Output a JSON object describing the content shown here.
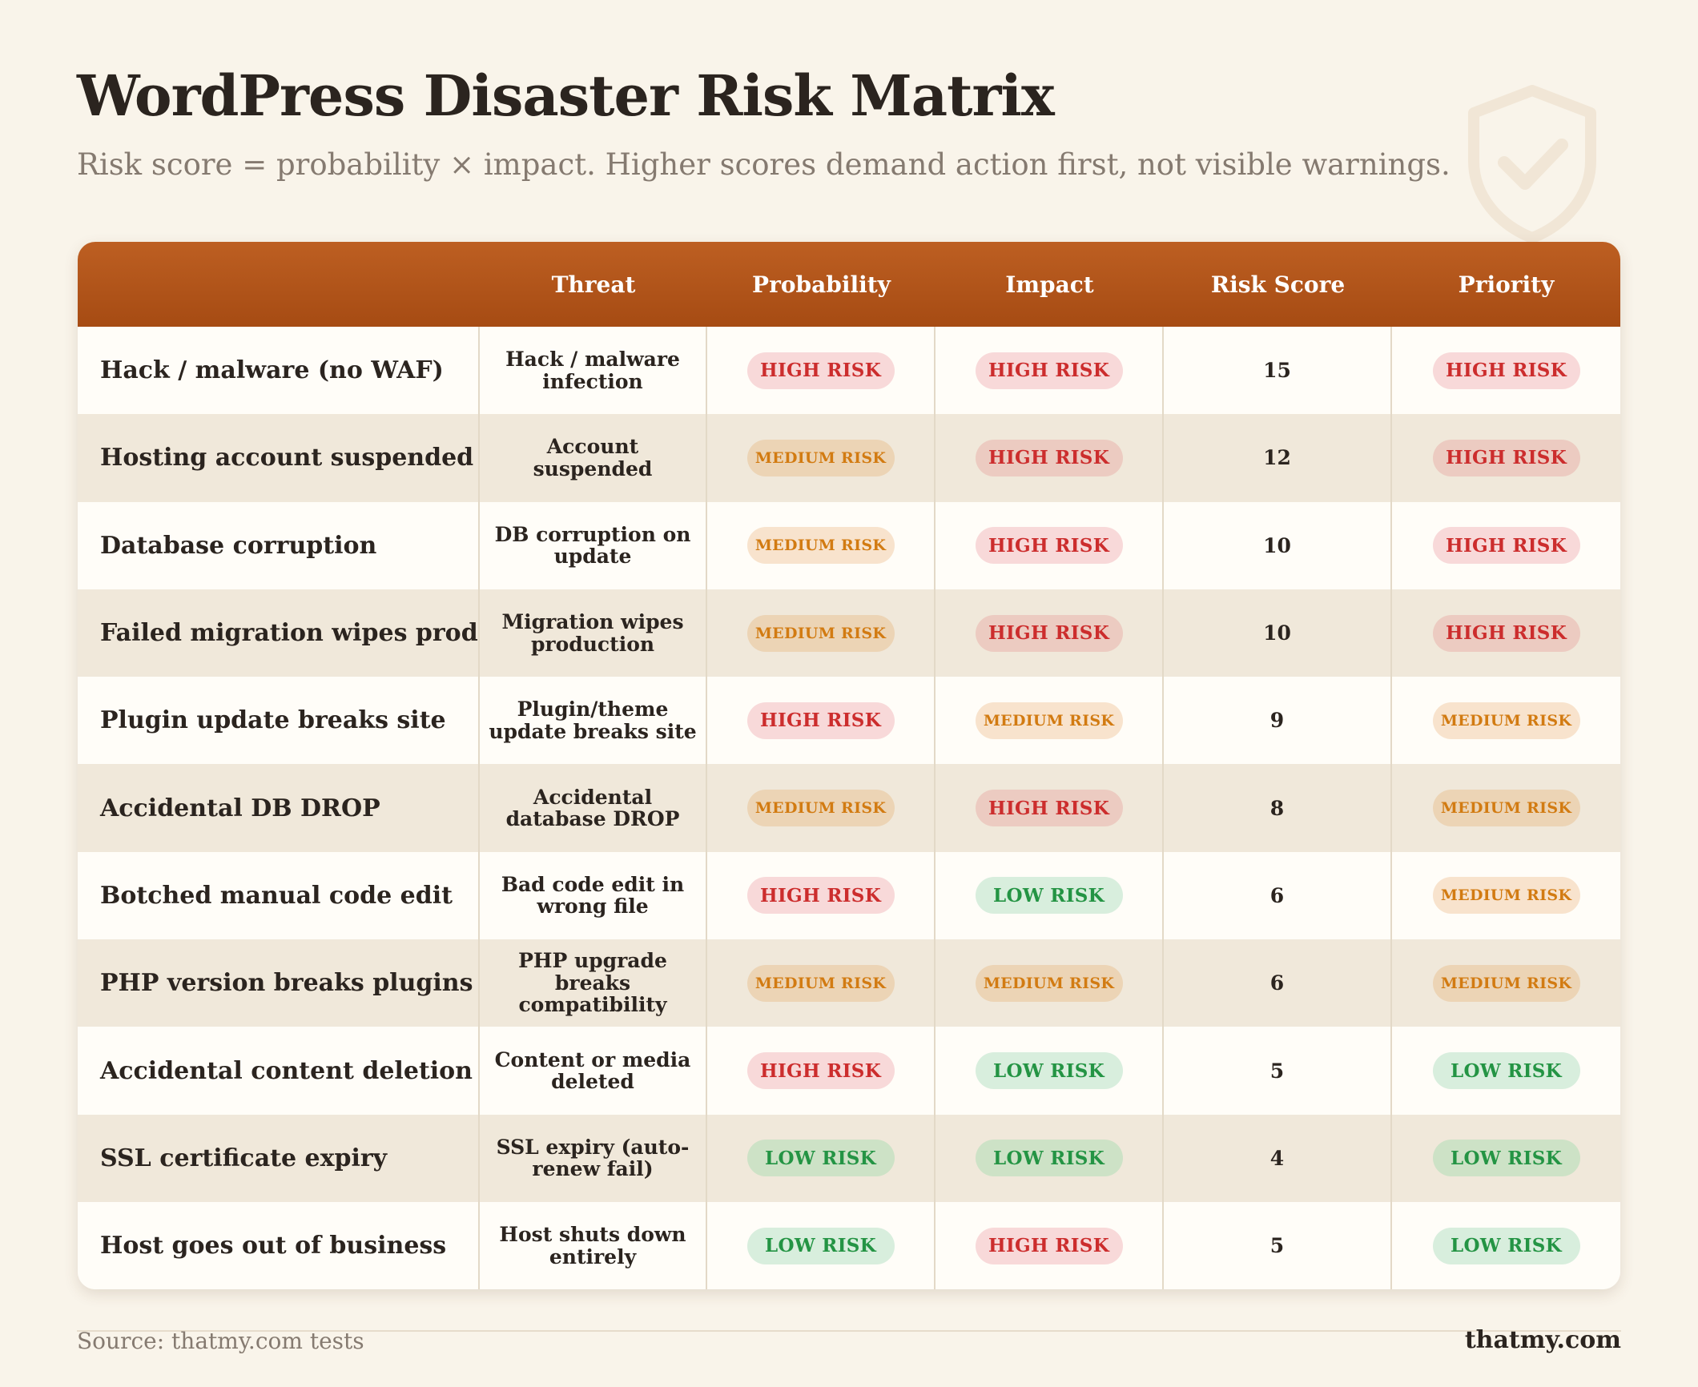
{
  "title": "WordPress Disaster Risk Matrix",
  "subtitle": "Risk score = probability × impact. Higher scores demand action first, not visible warnings.",
  "footer": {
    "source": "Source: thatmy.com tests",
    "brand": "thatmy.com"
  },
  "colors": {
    "header": "#a64b13",
    "high": "#cc2d2d",
    "medium": "#d27b12",
    "low": "#249444",
    "background": "#f9f4ea"
  },
  "decoration": {
    "icon": "shield-check-icon"
  },
  "chart_data": {
    "type": "table",
    "columns": [
      "",
      "Threat",
      "Probability",
      "Impact",
      "Risk Score",
      "Priority"
    ],
    "rows": [
      {
        "scenario": "Hack / malware (no WAF)",
        "threat": "Hack / malware infection",
        "probability": "HIGH RISK",
        "impact": "HIGH RISK",
        "risk_score": 15,
        "priority": "HIGH RISK"
      },
      {
        "scenario": "Hosting account suspended",
        "threat": "Account suspended",
        "probability": "MEDIUM RISK",
        "impact": "HIGH RISK",
        "risk_score": 12,
        "priority": "HIGH RISK"
      },
      {
        "scenario": "Database corruption",
        "threat": "DB corruption on update",
        "probability": "MEDIUM RISK",
        "impact": "HIGH RISK",
        "risk_score": 10,
        "priority": "HIGH RISK"
      },
      {
        "scenario": "Failed migration wipes prod",
        "threat": "Migration wipes production",
        "probability": "MEDIUM RISK",
        "impact": "HIGH RISK",
        "risk_score": 10,
        "priority": "HIGH RISK"
      },
      {
        "scenario": "Plugin update breaks site",
        "threat": "Plugin/theme update breaks site",
        "probability": "HIGH RISK",
        "impact": "MEDIUM RISK",
        "risk_score": 9,
        "priority": "MEDIUM RISK"
      },
      {
        "scenario": "Accidental DB DROP",
        "threat": "Accidental database DROP",
        "probability": "MEDIUM RISK",
        "impact": "HIGH RISK",
        "risk_score": 8,
        "priority": "MEDIUM RISK"
      },
      {
        "scenario": "Botched manual code edit",
        "threat": "Bad code edit in wrong file",
        "probability": "HIGH RISK",
        "impact": "LOW RISK",
        "risk_score": 6,
        "priority": "MEDIUM RISK"
      },
      {
        "scenario": "PHP version breaks plugins",
        "threat": "PHP upgrade breaks compatibility",
        "probability": "MEDIUM RISK",
        "impact": "MEDIUM RISK",
        "risk_score": 6,
        "priority": "MEDIUM RISK"
      },
      {
        "scenario": "Accidental content deletion",
        "threat": "Content or media deleted",
        "probability": "HIGH RISK",
        "impact": "LOW RISK",
        "risk_score": 5,
        "priority": "LOW RISK"
      },
      {
        "scenario": "SSL certificate expiry",
        "threat": "SSL expiry (auto-renew fail)",
        "probability": "LOW RISK",
        "impact": "LOW RISK",
        "risk_score": 4,
        "priority": "LOW RISK"
      },
      {
        "scenario": "Host goes out of business",
        "threat": "Host shuts down entirely",
        "probability": "LOW RISK",
        "impact": "HIGH RISK",
        "risk_score": 5,
        "priority": "LOW RISK"
      }
    ]
  }
}
